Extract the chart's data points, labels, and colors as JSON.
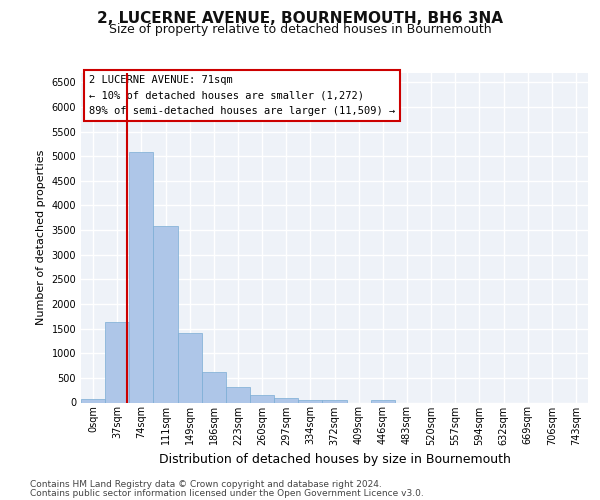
{
  "title": "2, LUCERNE AVENUE, BOURNEMOUTH, BH6 3NA",
  "subtitle": "Size of property relative to detached houses in Bournemouth",
  "xlabel": "Distribution of detached houses by size in Bournemouth",
  "ylabel": "Number of detached properties",
  "footnote1": "Contains HM Land Registry data © Crown copyright and database right 2024.",
  "footnote2": "Contains public sector information licensed under the Open Government Licence v3.0.",
  "property_label": "2 LUCERNE AVENUE: 71sqm",
  "annotation_line1": "← 10% of detached houses are smaller (1,272)",
  "annotation_line2": "89% of semi-detached houses are larger (11,509) →",
  "bin_labels": [
    "0sqm",
    "37sqm",
    "74sqm",
    "111sqm",
    "149sqm",
    "186sqm",
    "223sqm",
    "260sqm",
    "297sqm",
    "334sqm",
    "372sqm",
    "409sqm",
    "446sqm",
    "483sqm",
    "520sqm",
    "557sqm",
    "594sqm",
    "632sqm",
    "669sqm",
    "706sqm",
    "743sqm"
  ],
  "bar_values": [
    75,
    1630,
    5080,
    3590,
    1410,
    620,
    305,
    150,
    100,
    55,
    55,
    0,
    55,
    0,
    0,
    0,
    0,
    0,
    0,
    0,
    0
  ],
  "bar_color": "#aec6e8",
  "bar_edge_color": "#7aadd4",
  "ylim": [
    0,
    6700
  ],
  "yticks": [
    0,
    500,
    1000,
    1500,
    2000,
    2500,
    3000,
    3500,
    4000,
    4500,
    5000,
    5500,
    6000,
    6500
  ],
  "bg_color": "#eef2f8",
  "grid_color": "#ffffff",
  "property_line_color": "#cc0000",
  "title_fontsize": 11,
  "subtitle_fontsize": 9,
  "xlabel_fontsize": 9,
  "ylabel_fontsize": 8,
  "tick_fontsize": 7,
  "annotation_fontsize": 7.5,
  "footnote_fontsize": 6.5
}
